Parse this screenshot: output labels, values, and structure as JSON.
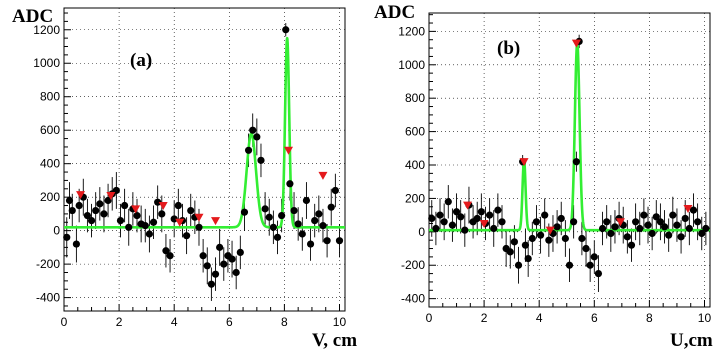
{
  "chart_data": [
    {
      "panel": "(a)",
      "type": "scatter",
      "ylabel": "ADC",
      "xlabel": "V, cm",
      "xlim": [
        0,
        10.2
      ],
      "ylim": [
        -480,
        1330
      ],
      "x_ticks": [
        0,
        2,
        4,
        6,
        8,
        10
      ],
      "y_ticks": [
        -400,
        -200,
        0,
        200,
        400,
        600,
        800,
        1000,
        1200
      ],
      "grid": true,
      "series": [
        {
          "kind": "points",
          "x": [
            0.1,
            0.2,
            0.3,
            0.45,
            0.55,
            0.7,
            0.85,
            1.0,
            1.15,
            1.3,
            1.45,
            1.6,
            1.75,
            1.9,
            2.05,
            2.2,
            2.35,
            2.5,
            2.65,
            2.8,
            2.95,
            3.1,
            3.25,
            3.4,
            3.55,
            3.7,
            3.85,
            4.0,
            4.15,
            4.3,
            4.45,
            4.6,
            4.75,
            4.9,
            5.05,
            5.2,
            5.35,
            5.5,
            5.65,
            5.8,
            5.95,
            6.1,
            6.25,
            6.4,
            6.55,
            6.7,
            6.85,
            7.0,
            7.15,
            7.3,
            7.45,
            7.6,
            7.75,
            7.9,
            8.05,
            8.2,
            8.35,
            8.5,
            8.65,
            8.8,
            8.95,
            9.1,
            9.25,
            9.4,
            9.55,
            9.7,
            9.85,
            10.0
          ],
          "y": [
            -40,
            180,
            120,
            -80,
            150,
            200,
            90,
            60,
            120,
            160,
            100,
            180,
            220,
            240,
            60,
            150,
            20,
            130,
            90,
            40,
            30,
            -20,
            50,
            170,
            100,
            -120,
            -150,
            70,
            150,
            60,
            -30,
            120,
            80,
            20,
            -150,
            -210,
            -320,
            -260,
            -100,
            -200,
            -150,
            -170,
            -250,
            -130,
            110,
            480,
            600,
            560,
            420,
            130,
            80,
            20,
            -40,
            90,
            1200,
            280,
            120,
            40,
            -20,
            180,
            -80,
            60,
            100,
            30,
            -60,
            140,
            240,
            -60
          ],
          "err": [
            120,
            110,
            100,
            110,
            100,
            110,
            100,
            100,
            110,
            100,
            110,
            100,
            100,
            110,
            100,
            100,
            110,
            100,
            100,
            110,
            100,
            110,
            100,
            100,
            110,
            100,
            100,
            110,
            100,
            100,
            110,
            100,
            100,
            110,
            100,
            110,
            100,
            100,
            110,
            100,
            100,
            110,
            100,
            100,
            110,
            100,
            100,
            110,
            100,
            100,
            110,
            100,
            100,
            100,
            40,
            100,
            110,
            100,
            100,
            110,
            100,
            100,
            110,
            100,
            100,
            110,
            100,
            100
          ]
        },
        {
          "kind": "red-triangles",
          "x": [
            0.6,
            1.7,
            2.6,
            3.6,
            4.2,
            4.9,
            5.5,
            8.15,
            9.4
          ],
          "y": [
            215,
            210,
            130,
            150,
            50,
            80,
            60,
            480,
            330
          ]
        },
        {
          "kind": "fit-curve",
          "baseline": 20,
          "peaks": [
            {
              "center": 6.8,
              "height": 560,
              "sigma": 0.17
            },
            {
              "center": 8.1,
              "height": 1130,
              "sigma": 0.075
            }
          ]
        }
      ]
    },
    {
      "panel": "(b)",
      "type": "scatter",
      "ylabel": "ADC",
      "xlabel": "U,cm",
      "xlim": [
        0,
        10.2
      ],
      "ylim": [
        -450,
        1310
      ],
      "x_ticks": [
        0,
        2,
        4,
        6,
        8,
        10
      ],
      "y_ticks": [
        -400,
        -200,
        0,
        200,
        400,
        600,
        800,
        1000,
        1200
      ],
      "grid": true,
      "series": [
        {
          "kind": "points",
          "x": [
            0.1,
            0.25,
            0.4,
            0.55,
            0.7,
            0.85,
            1.0,
            1.15,
            1.3,
            1.45,
            1.6,
            1.75,
            1.9,
            2.05,
            2.2,
            2.35,
            2.5,
            2.65,
            2.8,
            2.95,
            3.1,
            3.25,
            3.4,
            3.5,
            3.6,
            3.75,
            3.9,
            4.05,
            4.2,
            4.35,
            4.5,
            4.65,
            4.8,
            4.95,
            5.1,
            5.25,
            5.35,
            5.45,
            5.55,
            5.7,
            5.85,
            6.0,
            6.15,
            6.3,
            6.45,
            6.6,
            6.75,
            6.9,
            7.05,
            7.2,
            7.35,
            7.5,
            7.65,
            7.8,
            7.95,
            8.1,
            8.25,
            8.4,
            8.55,
            8.7,
            8.85,
            9.0,
            9.15,
            9.3,
            9.45,
            9.6,
            9.75,
            9.9,
            10.05
          ],
          "y": [
            80,
            20,
            100,
            60,
            180,
            40,
            120,
            90,
            10,
            160,
            60,
            80,
            120,
            50,
            100,
            20,
            130,
            60,
            -100,
            -120,
            -60,
            -200,
            420,
            -80,
            -160,
            -40,
            60,
            -20,
            100,
            -50,
            -10,
            30,
            80,
            -40,
            -200,
            60,
            420,
            1140,
            -40,
            -100,
            -200,
            -150,
            -250,
            20,
            60,
            -10,
            30,
            80,
            40,
            -30,
            -80,
            60,
            20,
            100,
            40,
            -10,
            90,
            60,
            30,
            -20,
            100,
            40,
            -30,
            80,
            20,
            130,
            60,
            -10,
            20
          ],
          "err": [
            110,
            100,
            100,
            110,
            100,
            100,
            110,
            100,
            100,
            110,
            100,
            100,
            110,
            100,
            100,
            110,
            100,
            100,
            110,
            100,
            100,
            110,
            40,
            100,
            110,
            100,
            100,
            110,
            100,
            100,
            110,
            100,
            100,
            110,
            100,
            100,
            60,
            40,
            100,
            110,
            100,
            100,
            110,
            100,
            100,
            110,
            100,
            100,
            110,
            100,
            100,
            110,
            100,
            100,
            110,
            100,
            100,
            110,
            100,
            100,
            110,
            100,
            100,
            110,
            100,
            100,
            110,
            100,
            100
          ]
        },
        {
          "kind": "red-triangles",
          "x": [
            1.4,
            2.0,
            3.45,
            4.4,
            5.35,
            6.95,
            9.4
          ],
          "y": [
            160,
            50,
            420,
            10,
            1130,
            60,
            140
          ]
        },
        {
          "kind": "fit-curve",
          "baseline": 10,
          "peaks": [
            {
              "center": 3.45,
              "height": 420,
              "sigma": 0.055
            },
            {
              "center": 5.38,
              "height": 1120,
              "sigma": 0.085
            }
          ]
        }
      ]
    }
  ]
}
